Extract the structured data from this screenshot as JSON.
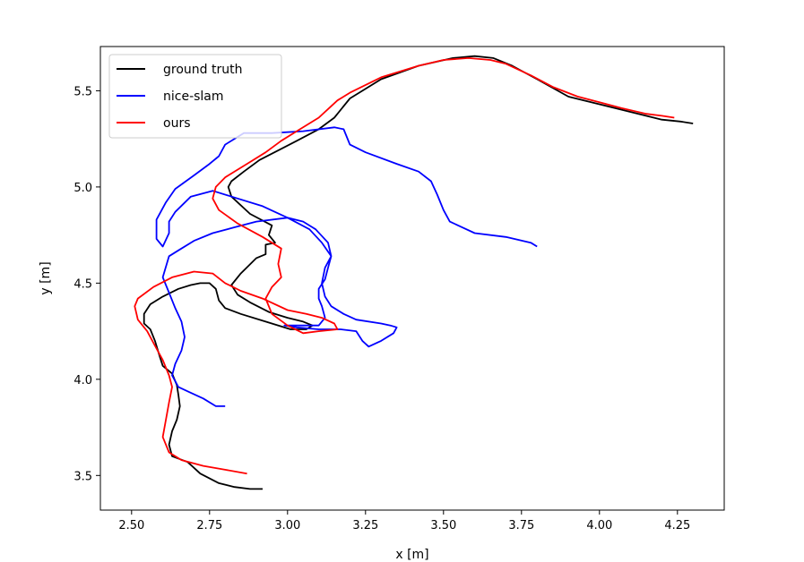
{
  "chart_data": {
    "type": "line",
    "xlabel": "x [m]",
    "ylabel": "y [m]",
    "xlim": [
      2.4,
      4.4
    ],
    "ylim": [
      3.32,
      5.73
    ],
    "xticks": [
      2.5,
      2.75,
      3.0,
      3.25,
      3.5,
      3.75,
      4.0,
      4.25
    ],
    "xtick_labels": [
      "2.50",
      "2.75",
      "3.00",
      "3.25",
      "3.50",
      "3.75",
      "4.00",
      "4.25"
    ],
    "yticks": [
      3.5,
      4.0,
      4.5,
      5.0,
      5.5
    ],
    "ytick_labels": [
      "3.5",
      "4.0",
      "4.5",
      "5.0",
      "5.5"
    ],
    "grid": false,
    "legend": "top-left",
    "series": [
      {
        "name": "ground truth",
        "color": "#000000",
        "x": [
          2.92,
          2.88,
          2.83,
          2.78,
          2.72,
          2.68,
          2.63,
          2.62,
          2.63,
          2.645,
          2.655,
          2.65,
          2.645,
          2.63,
          2.6,
          2.59,
          2.575,
          2.56,
          2.54,
          2.54,
          2.56,
          2.6,
          2.65,
          2.69,
          2.72,
          2.75,
          2.77,
          2.78,
          2.8,
          2.85,
          2.93,
          3.01,
          3.06,
          3.08,
          3.05,
          3.0,
          2.94,
          2.88,
          2.84,
          2.82,
          2.85,
          2.9,
          2.93,
          2.93,
          2.96,
          2.94,
          2.95,
          2.88,
          2.82,
          2.81,
          2.82,
          2.86,
          2.91,
          2.97,
          3.03,
          3.1,
          3.15,
          3.2,
          3.3,
          3.42,
          3.53,
          3.6,
          3.66,
          3.72,
          3.8,
          3.9,
          4.0,
          4.1,
          4.2,
          4.26,
          4.3
        ],
        "y": [
          3.43,
          3.43,
          3.44,
          3.46,
          3.51,
          3.57,
          3.6,
          3.66,
          3.73,
          3.79,
          3.86,
          3.92,
          3.97,
          4.03,
          4.07,
          4.12,
          4.2,
          4.26,
          4.29,
          4.34,
          4.39,
          4.43,
          4.47,
          4.49,
          4.5,
          4.5,
          4.47,
          4.41,
          4.37,
          4.34,
          4.3,
          4.26,
          4.26,
          4.28,
          4.3,
          4.32,
          4.35,
          4.4,
          4.44,
          4.49,
          4.55,
          4.63,
          4.65,
          4.7,
          4.71,
          4.75,
          4.8,
          4.86,
          4.95,
          5.0,
          5.03,
          5.08,
          5.14,
          5.19,
          5.24,
          5.3,
          5.36,
          5.46,
          5.56,
          5.63,
          5.67,
          5.68,
          5.67,
          5.63,
          5.56,
          5.47,
          5.43,
          5.39,
          5.35,
          5.34,
          5.33
        ]
      },
      {
        "name": "nice-slam",
        "color": "#0000ff",
        "x": [
          2.8,
          2.77,
          2.73,
          2.69,
          2.65,
          2.63,
          2.64,
          2.66,
          2.67,
          2.66,
          2.64,
          2.62,
          2.6,
          2.62,
          2.65,
          2.7,
          2.76,
          2.83,
          2.9,
          3.0,
          3.05,
          3.09,
          3.13,
          3.14,
          3.12,
          3.11,
          3.12,
          3.14,
          3.18,
          3.22,
          3.3,
          3.33,
          3.35,
          3.34,
          3.3,
          3.26,
          3.24,
          3.22,
          3.17,
          3.1,
          3.03,
          2.99,
          3.0,
          3.04,
          3.1,
          3.12,
          3.11,
          3.1,
          3.1,
          3.12,
          3.13,
          3.14,
          3.11,
          3.07,
          3.0,
          2.92,
          2.84,
          2.76,
          2.69,
          2.64,
          2.62,
          2.62,
          2.6,
          2.58,
          2.58,
          2.61,
          2.64,
          2.7,
          2.75,
          2.78,
          2.8,
          2.86,
          2.95,
          3.05,
          3.15,
          3.18,
          3.2,
          3.25,
          3.35,
          3.42,
          3.46,
          3.48,
          3.5,
          3.52,
          3.6,
          3.7,
          3.78,
          3.8
        ],
        "y": [
          3.86,
          3.86,
          3.9,
          3.93,
          3.96,
          4.02,
          4.08,
          4.15,
          4.22,
          4.3,
          4.37,
          4.45,
          4.53,
          4.64,
          4.67,
          4.72,
          4.76,
          4.79,
          4.82,
          4.84,
          4.82,
          4.78,
          4.71,
          4.64,
          4.58,
          4.5,
          4.43,
          4.38,
          4.34,
          4.31,
          4.29,
          4.28,
          4.27,
          4.24,
          4.2,
          4.17,
          4.2,
          4.25,
          4.26,
          4.26,
          4.27,
          4.28,
          4.28,
          4.28,
          4.28,
          4.32,
          4.38,
          4.42,
          4.47,
          4.52,
          4.58,
          4.64,
          4.71,
          4.78,
          4.84,
          4.9,
          4.94,
          4.98,
          4.95,
          4.87,
          4.82,
          4.76,
          4.69,
          4.73,
          4.83,
          4.92,
          4.99,
          5.06,
          5.12,
          5.16,
          5.22,
          5.28,
          5.28,
          5.29,
          5.31,
          5.3,
          5.22,
          5.18,
          5.12,
          5.08,
          5.03,
          4.96,
          4.88,
          4.82,
          4.76,
          4.74,
          4.71,
          4.69
        ]
      },
      {
        "name": "ours",
        "color": "#ff0000",
        "x": [
          2.87,
          2.8,
          2.73,
          2.66,
          2.62,
          2.6,
          2.61,
          2.62,
          2.63,
          2.62,
          2.6,
          2.58,
          2.55,
          2.52,
          2.51,
          2.52,
          2.57,
          2.63,
          2.7,
          2.76,
          2.8,
          2.85,
          2.92,
          3.0,
          3.06,
          3.11,
          3.15,
          3.16,
          3.1,
          3.05,
          3.0,
          2.95,
          2.93,
          2.95,
          2.98,
          2.97,
          2.98,
          2.92,
          2.84,
          2.78,
          2.76,
          2.77,
          2.8,
          2.87,
          2.93,
          2.98,
          3.04,
          3.1,
          3.16,
          3.2,
          3.3,
          3.42,
          3.5,
          3.58,
          3.65,
          3.7,
          3.78,
          3.85,
          3.93,
          4.0,
          4.07,
          4.15,
          4.2,
          4.24
        ],
        "y": [
          3.51,
          3.53,
          3.55,
          3.58,
          3.62,
          3.7,
          3.79,
          3.88,
          3.96,
          4.02,
          4.1,
          4.16,
          4.25,
          4.31,
          4.38,
          4.42,
          4.48,
          4.53,
          4.56,
          4.55,
          4.5,
          4.46,
          4.42,
          4.36,
          4.34,
          4.32,
          4.29,
          4.26,
          4.25,
          4.24,
          4.28,
          4.34,
          4.42,
          4.48,
          4.53,
          4.6,
          4.68,
          4.74,
          4.81,
          4.88,
          4.94,
          5.0,
          5.05,
          5.12,
          5.18,
          5.24,
          5.3,
          5.36,
          5.45,
          5.49,
          5.57,
          5.63,
          5.66,
          5.67,
          5.66,
          5.64,
          5.58,
          5.52,
          5.47,
          5.44,
          5.41,
          5.38,
          5.37,
          5.36
        ]
      }
    ]
  }
}
